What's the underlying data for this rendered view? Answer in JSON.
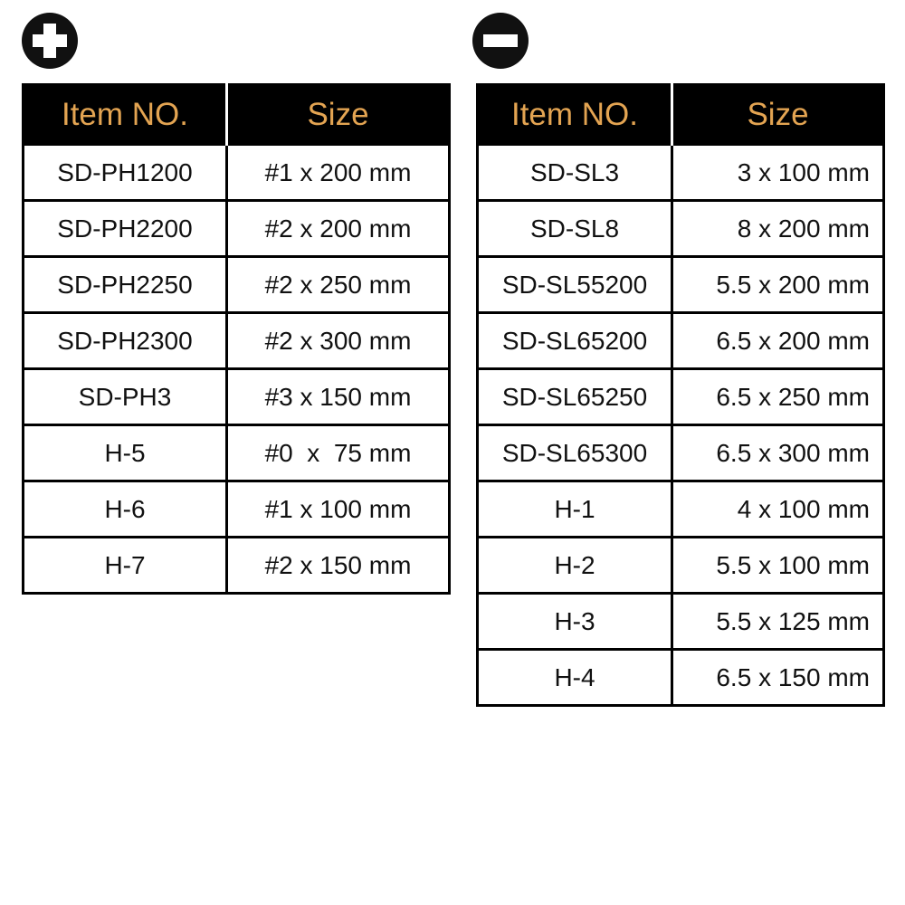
{
  "phillips": {
    "icon": "plus-circle-icon",
    "headers": [
      "Item NO.",
      "Size"
    ],
    "rows": [
      [
        "SD-PH1200",
        "#1 x 200 mm"
      ],
      [
        "SD-PH2200",
        "#2 x 200 mm"
      ],
      [
        "SD-PH2250",
        "#2 x 250 mm"
      ],
      [
        "SD-PH2300",
        "#2 x 300 mm"
      ],
      [
        "SD-PH3",
        "#3 x 150 mm"
      ],
      [
        "H-5",
        "#0  x  75 mm"
      ],
      [
        "H-6",
        "#1 x 100 mm"
      ],
      [
        "H-7",
        "#2 x 150 mm"
      ]
    ]
  },
  "slotted": {
    "icon": "minus-circle-icon",
    "headers": [
      "Item NO.",
      "Size"
    ],
    "rows": [
      [
        "SD-SL3",
        "3 x 100 mm"
      ],
      [
        "SD-SL8",
        "8 x 200 mm"
      ],
      [
        "SD-SL55200",
        "5.5 x 200 mm"
      ],
      [
        "SD-SL65200",
        "6.5 x 200 mm"
      ],
      [
        "SD-SL65250",
        "6.5 x 250 mm"
      ],
      [
        "SD-SL65300",
        "6.5 x 300 mm"
      ],
      [
        "H-1",
        "4 x 100 mm"
      ],
      [
        "H-2",
        "5.5 x 100 mm"
      ],
      [
        "H-3",
        "5.5 x 125 mm"
      ],
      [
        "H-4",
        "6.5 x 150 mm"
      ]
    ]
  },
  "colors": {
    "header_bg": "#000000",
    "header_text": "#e3a452"
  }
}
